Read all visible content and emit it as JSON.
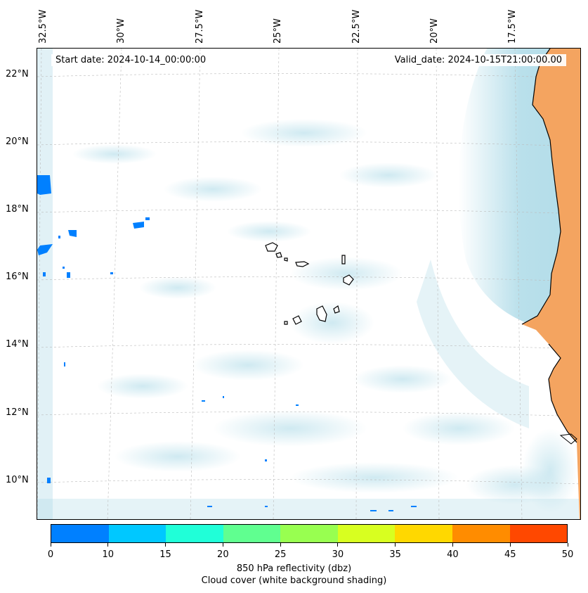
{
  "header": {
    "start_date": "Start date: 2024-10-14_00:00:00",
    "valid_date": "Valid_date: 2024-10-15T21:00:00.00"
  },
  "axes": {
    "longitude_labels": [
      "32.5°W",
      "30°W",
      "27.5°W",
      "25°W",
      "22.5°W",
      "20°W",
      "17.5°W"
    ],
    "latitude_labels": [
      "22°N",
      "20°N",
      "18°N",
      "16°N",
      "14°N",
      "12°N",
      "10°N"
    ]
  },
  "colorbar": {
    "ticks": [
      "0",
      "10",
      "15",
      "20",
      "25",
      "30",
      "35",
      "40",
      "45",
      "50"
    ],
    "colors": [
      "#0080ff",
      "#00c8ff",
      "#20ffd8",
      "#60ff90",
      "#98ff50",
      "#d8ff20",
      "#ffd800",
      "#ff8c00",
      "#ff4800"
    ],
    "label_line1": "850 hPa reflectivity (dbz)",
    "label_line2": "Cloud cover (white background shading)"
  },
  "map": {
    "land_color": "#f4a460",
    "cloud_color": "#a8d8e6",
    "reflectivity_color": "#0080ff",
    "coastline_color": "#000000"
  }
}
